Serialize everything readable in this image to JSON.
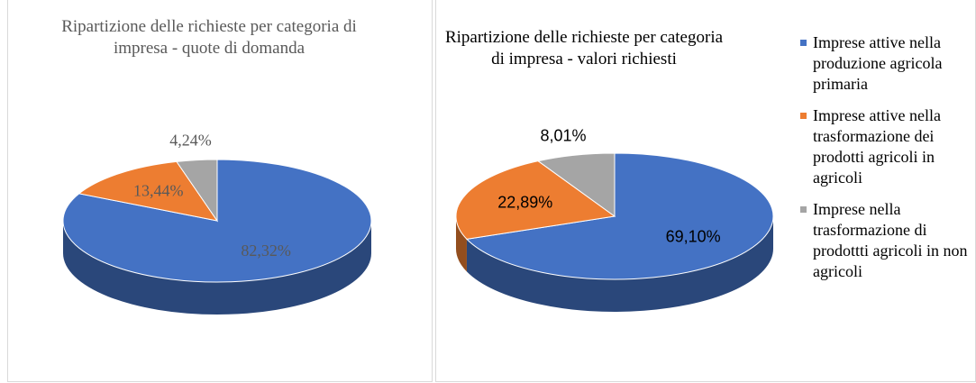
{
  "chart_data": [
    {
      "type": "pie3d",
      "title": "Ripartizione delle richieste per categoria di impresa - quote di domanda",
      "values": [
        82.32,
        13.44,
        4.24
      ],
      "value_labels": [
        "82,32%",
        "13,44%",
        "4,24%"
      ],
      "colors": [
        "#4472c4",
        "#ed7d31",
        "#a5a5a5"
      ]
    },
    {
      "type": "pie3d",
      "title": "Ripartizione delle richieste per categoria di impresa - valori richiesti",
      "categories": [
        "Imprese attive nella produzione agricola primaria",
        "Imprese attive nella trasformazione dei prodotti agricoli in agricoli",
        "Imprese nella trasformazione di prodottti agricoli in non agricoli"
      ],
      "values": [
        69.1,
        22.89,
        8.01
      ],
      "value_labels": [
        "69,10%",
        "22,89%",
        "8,01%"
      ],
      "colors": [
        "#4472c4",
        "#ed7d31",
        "#a5a5a5"
      ],
      "legend": "right"
    }
  ]
}
